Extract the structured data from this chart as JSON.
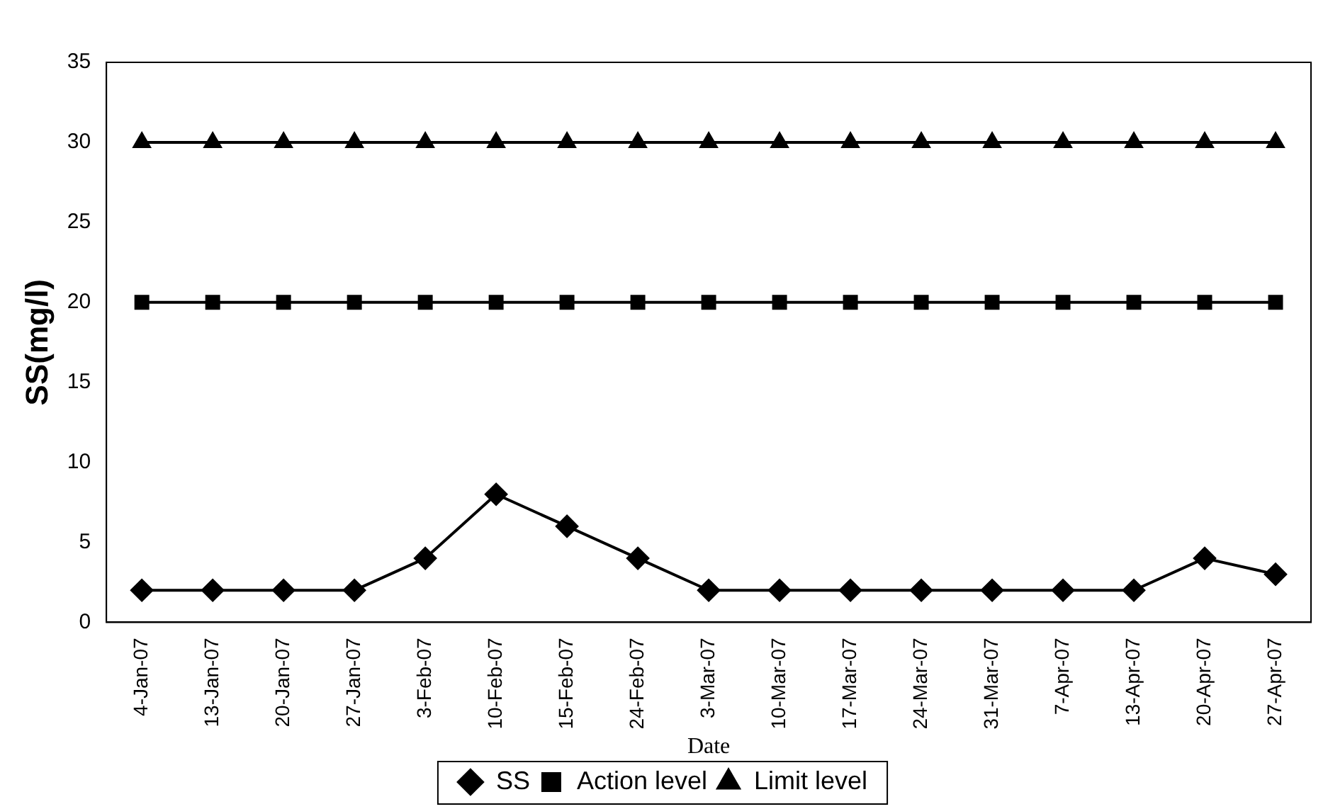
{
  "chart_data": {
    "type": "line",
    "xlabel": "Date",
    "ylabel": "SS(mg/l)",
    "categories": [
      "4-Jan-07",
      "13-Jan-07",
      "20-Jan-07",
      "27-Jan-07",
      "3-Feb-07",
      "10-Feb-07",
      "15-Feb-07",
      "24-Feb-07",
      "3-Mar-07",
      "10-Mar-07",
      "17-Mar-07",
      "24-Mar-07",
      "31-Mar-07",
      "7-Apr-07",
      "13-Apr-07",
      "20-Apr-07",
      "27-Apr-07"
    ],
    "series": [
      {
        "name": "SS",
        "color": "#000000",
        "marker": "diamond",
        "values": [
          2,
          2,
          2,
          2,
          4,
          8,
          6,
          4,
          2,
          2,
          2,
          2,
          2,
          2,
          2,
          4,
          3
        ]
      },
      {
        "name": "Action level",
        "color": "#000000",
        "marker": "square",
        "values": [
          20,
          20,
          20,
          20,
          20,
          20,
          20,
          20,
          20,
          20,
          20,
          20,
          20,
          20,
          20,
          20,
          20
        ]
      },
      {
        "name": "Limit level",
        "color": "#000000",
        "marker": "triangle",
        "values": [
          30,
          30,
          30,
          30,
          30,
          30,
          30,
          30,
          30,
          30,
          30,
          30,
          30,
          30,
          30,
          30,
          30
        ]
      }
    ],
    "ylim": [
      0,
      35
    ],
    "yticks": [
      0,
      5,
      10,
      15,
      20,
      25,
      30,
      35
    ],
    "grid": false,
    "legend": "bottom",
    "line_style": "solid"
  }
}
